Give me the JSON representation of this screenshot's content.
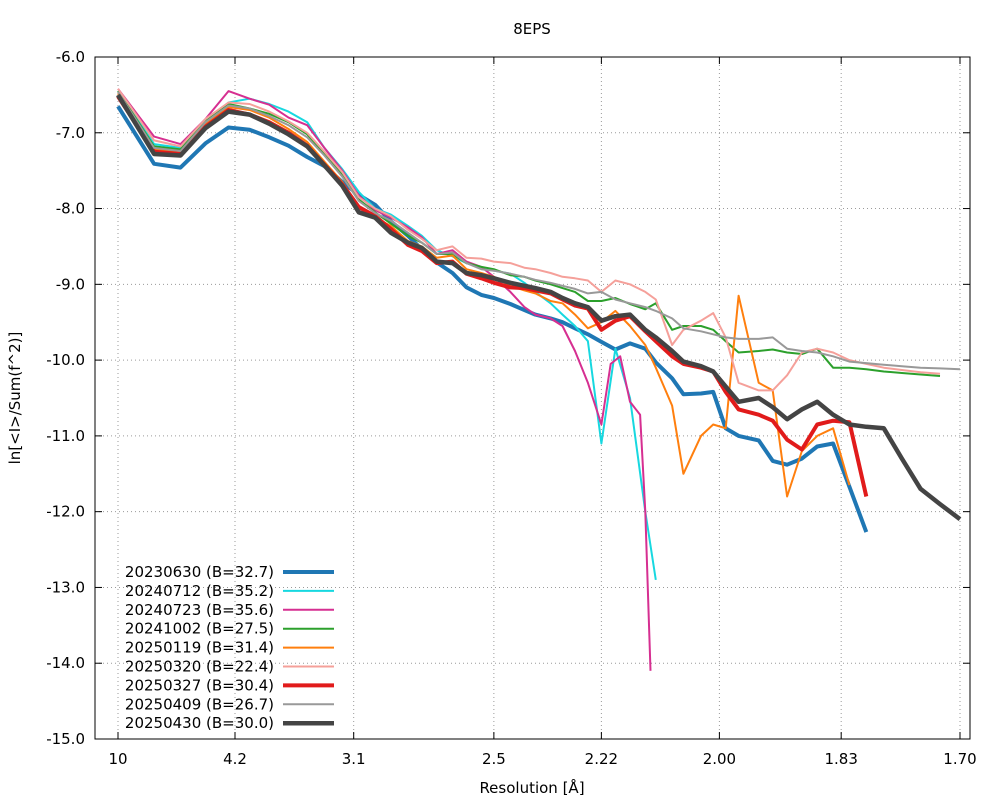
{
  "chart_data": {
    "type": "line",
    "title": "8EPS",
    "xlabel": "Resolution [Å]",
    "ylabel": "ln[<I>/Sum(f^2)]",
    "x_axis_scale": "inverse-square resolution (1/d^2)",
    "xlim_resolution": [
      10,
      1.7
    ],
    "ylim": [
      -15.0,
      -6.0
    ],
    "x_ticks": [
      "10",
      "4.2",
      "3.1",
      "2.5",
      "2.22",
      "2.00",
      "1.83",
      "1.70"
    ],
    "y_ticks": [
      "-6.0",
      "-7.0",
      "-8.0",
      "-9.0",
      "-10.0",
      "-11.0",
      "-12.0",
      "-13.0",
      "-14.0",
      "-15.0"
    ],
    "grid": true,
    "legend_position": "bottom-left",
    "series": [
      {
        "name": "20230630 (B=32.7)",
        "color": "#1f77b4",
        "width": 4,
        "x": [
          10.0,
          6.4,
          5.35,
          4.72,
          4.3,
          4.0,
          3.77,
          3.58,
          3.42,
          3.29,
          3.17,
          3.07,
          2.98,
          2.9,
          2.82,
          2.76,
          2.7,
          2.64,
          2.59,
          2.54,
          2.5,
          2.45,
          2.41,
          2.38,
          2.34,
          2.31,
          2.28,
          2.25,
          2.22,
          2.19,
          2.16,
          2.13,
          2.11,
          2.08,
          2.06,
          2.03,
          2.01,
          1.99,
          1.97,
          1.94,
          1.92,
          1.9,
          1.88,
          1.86,
          1.84,
          1.82,
          1.8
        ],
        "y": [
          -6.65,
          -7.41,
          -7.46,
          -7.14,
          -6.93,
          -6.96,
          -7.06,
          -7.17,
          -7.32,
          -7.44,
          -7.65,
          -7.82,
          -7.95,
          -8.17,
          -8.36,
          -8.54,
          -8.71,
          -8.85,
          -9.04,
          -9.14,
          -9.18,
          -9.26,
          -9.34,
          -9.4,
          -9.45,
          -9.5,
          -9.58,
          -9.66,
          -9.76,
          -9.86,
          -9.78,
          -9.85,
          -10.03,
          -10.24,
          -10.45,
          -10.44,
          -10.42,
          -10.9,
          -11.0,
          -11.06,
          -11.33,
          -11.38,
          -11.3,
          -11.14,
          -11.1,
          -11.67,
          -12.27
        ]
      },
      {
        "name": "20240712 (B=35.2)",
        "color": "#17d8e0",
        "width": 2,
        "x": [
          10.0,
          6.4,
          5.35,
          4.72,
          4.3,
          4.0,
          3.77,
          3.58,
          3.42,
          3.29,
          3.17,
          3.07,
          2.98,
          2.9,
          2.82,
          2.76,
          2.7,
          2.64,
          2.59,
          2.54,
          2.5,
          2.45,
          2.41,
          2.38,
          2.34,
          2.31,
          2.28,
          2.25,
          2.22,
          2.19,
          2.16,
          2.13,
          2.11
        ],
        "y": [
          -6.45,
          -7.15,
          -7.2,
          -6.85,
          -6.6,
          -6.55,
          -6.62,
          -6.72,
          -6.86,
          -7.2,
          -7.48,
          -7.78,
          -8.0,
          -8.08,
          -8.23,
          -8.36,
          -8.55,
          -8.63,
          -8.72,
          -8.77,
          -8.82,
          -8.86,
          -8.98,
          -9.1,
          -9.25,
          -9.4,
          -9.55,
          -9.75,
          -11.1,
          -9.85,
          -10.5,
          -12.0,
          -12.9
        ]
      },
      {
        "name": "20240723 (B=35.6)",
        "color": "#d62f91",
        "width": 2,
        "x": [
          10.0,
          6.4,
          5.35,
          4.72,
          4.3,
          4.0,
          3.77,
          3.58,
          3.42,
          3.29,
          3.17,
          3.07,
          2.98,
          2.9,
          2.82,
          2.76,
          2.7,
          2.64,
          2.59,
          2.54,
          2.5,
          2.45,
          2.41,
          2.38,
          2.34,
          2.31,
          2.28,
          2.25,
          2.22,
          2.2,
          2.18,
          2.16,
          2.14,
          2.13,
          2.12
        ],
        "y": [
          -6.42,
          -7.05,
          -7.15,
          -6.82,
          -6.45,
          -6.55,
          -6.63,
          -6.8,
          -6.9,
          -7.2,
          -7.5,
          -7.83,
          -8.02,
          -8.12,
          -8.25,
          -8.38,
          -8.6,
          -8.55,
          -8.7,
          -8.77,
          -8.9,
          -9.1,
          -9.3,
          -9.4,
          -9.45,
          -9.55,
          -9.88,
          -10.3,
          -10.85,
          -10.05,
          -9.95,
          -10.55,
          -10.72,
          -12.0,
          -14.1
        ]
      },
      {
        "name": "20241002 (B=27.5)",
        "color": "#2ca02c",
        "width": 2,
        "x": [
          10.0,
          6.4,
          5.35,
          4.72,
          4.3,
          4.0,
          3.77,
          3.58,
          3.42,
          3.29,
          3.17,
          3.07,
          2.98,
          2.9,
          2.82,
          2.76,
          2.7,
          2.64,
          2.59,
          2.54,
          2.5,
          2.45,
          2.41,
          2.38,
          2.34,
          2.31,
          2.28,
          2.25,
          2.22,
          2.19,
          2.16,
          2.13,
          2.11,
          2.08,
          2.06,
          2.03,
          2.01,
          1.99,
          1.97,
          1.94,
          1.92,
          1.9,
          1.88,
          1.86,
          1.84,
          1.82,
          1.8,
          1.78,
          1.76,
          1.74,
          1.72
        ],
        "y": [
          -6.45,
          -7.18,
          -7.22,
          -6.85,
          -6.62,
          -6.68,
          -6.75,
          -6.86,
          -7.02,
          -7.28,
          -7.55,
          -7.88,
          -8.05,
          -8.2,
          -8.36,
          -8.45,
          -8.6,
          -8.6,
          -8.72,
          -8.77,
          -8.8,
          -8.88,
          -8.9,
          -8.95,
          -9.0,
          -9.05,
          -9.1,
          -9.22,
          -9.22,
          -9.18,
          -9.26,
          -9.33,
          -9.25,
          -9.6,
          -9.55,
          -9.55,
          -9.6,
          -9.75,
          -9.9,
          -9.88,
          -9.86,
          -9.9,
          -9.92,
          -9.85,
          -10.1,
          -10.1,
          -10.12,
          -10.15,
          -10.17,
          -10.19,
          -10.21
        ]
      },
      {
        "name": "20250119 (B=31.4)",
        "color": "#ff7f0e",
        "width": 2,
        "x": [
          10.0,
          6.4,
          5.35,
          4.72,
          4.3,
          4.0,
          3.77,
          3.58,
          3.42,
          3.29,
          3.17,
          3.07,
          2.98,
          2.9,
          2.82,
          2.76,
          2.7,
          2.64,
          2.59,
          2.54,
          2.5,
          2.45,
          2.41,
          2.38,
          2.34,
          2.31,
          2.28,
          2.25,
          2.22,
          2.19,
          2.16,
          2.13,
          2.11,
          2.08,
          2.06,
          2.03,
          2.01,
          1.99,
          1.97,
          1.94,
          1.92,
          1.9,
          1.88,
          1.86,
          1.84,
          1.82
        ],
        "y": [
          -6.48,
          -7.22,
          -7.25,
          -6.88,
          -6.66,
          -6.7,
          -6.8,
          -6.95,
          -7.12,
          -7.38,
          -7.65,
          -7.98,
          -8.12,
          -8.23,
          -8.43,
          -8.5,
          -8.65,
          -8.62,
          -8.8,
          -8.85,
          -8.9,
          -9.02,
          -9.08,
          -9.12,
          -9.22,
          -9.25,
          -9.4,
          -9.58,
          -9.5,
          -9.35,
          -9.55,
          -9.8,
          -10.1,
          -10.6,
          -11.5,
          -11.0,
          -10.85,
          -10.9,
          -9.15,
          -10.3,
          -10.4,
          -11.8,
          -11.2,
          -11.0,
          -10.9,
          -11.65
        ]
      },
      {
        "name": "20250320 (B=22.4)",
        "color": "#f5a09a",
        "width": 2,
        "x": [
          10.0,
          6.4,
          5.35,
          4.72,
          4.3,
          4.0,
          3.77,
          3.58,
          3.42,
          3.29,
          3.17,
          3.07,
          2.98,
          2.9,
          2.82,
          2.76,
          2.7,
          2.64,
          2.59,
          2.54,
          2.5,
          2.45,
          2.41,
          2.38,
          2.34,
          2.31,
          2.28,
          2.25,
          2.22,
          2.19,
          2.16,
          2.13,
          2.11,
          2.08,
          2.06,
          2.03,
          2.01,
          1.99,
          1.97,
          1.94,
          1.92,
          1.9,
          1.88,
          1.86,
          1.84,
          1.82,
          1.8,
          1.78,
          1.76,
          1.74,
          1.72
        ],
        "y": [
          -6.42,
          -7.1,
          -7.18,
          -6.82,
          -6.6,
          -6.62,
          -6.72,
          -6.85,
          -7.0,
          -7.25,
          -7.52,
          -7.85,
          -8.0,
          -8.1,
          -8.28,
          -8.4,
          -8.55,
          -8.5,
          -8.65,
          -8.66,
          -8.7,
          -8.72,
          -8.78,
          -8.8,
          -8.85,
          -8.9,
          -8.92,
          -8.95,
          -9.1,
          -8.95,
          -9.0,
          -9.1,
          -9.2,
          -9.8,
          -9.6,
          -9.48,
          -9.38,
          -9.7,
          -10.3,
          -10.4,
          -10.4,
          -10.2,
          -9.9,
          -9.85,
          -9.9,
          -10.0,
          -10.05,
          -10.1,
          -10.13,
          -10.16,
          -10.18
        ]
      },
      {
        "name": "20250327 (B=30.4)",
        "color": "#e11b1b",
        "width": 4,
        "x": [
          10.0,
          6.4,
          5.35,
          4.72,
          4.3,
          4.0,
          3.77,
          3.58,
          3.42,
          3.29,
          3.17,
          3.07,
          2.98,
          2.9,
          2.82,
          2.76,
          2.7,
          2.64,
          2.59,
          2.54,
          2.5,
          2.45,
          2.41,
          2.38,
          2.34,
          2.31,
          2.28,
          2.25,
          2.22,
          2.19,
          2.16,
          2.13,
          2.11,
          2.08,
          2.06,
          2.03,
          2.01,
          1.99,
          1.97,
          1.94,
          1.92,
          1.9,
          1.88,
          1.86,
          1.84,
          1.82,
          1.8
        ],
        "y": [
          -6.52,
          -7.25,
          -7.28,
          -6.92,
          -6.7,
          -6.76,
          -6.86,
          -7.0,
          -7.17,
          -7.42,
          -7.68,
          -7.98,
          -8.1,
          -8.27,
          -8.48,
          -8.56,
          -8.72,
          -8.7,
          -8.86,
          -8.92,
          -8.98,
          -9.04,
          -9.05,
          -9.08,
          -9.12,
          -9.2,
          -9.28,
          -9.32,
          -9.6,
          -9.48,
          -9.42,
          -9.62,
          -9.75,
          -9.95,
          -10.05,
          -10.1,
          -10.15,
          -10.42,
          -10.65,
          -10.72,
          -10.8,
          -11.05,
          -11.18,
          -10.85,
          -10.8,
          -10.82,
          -11.8
        ]
      },
      {
        "name": "20250409 (B=26.7)",
        "color": "#999999",
        "width": 2,
        "x": [
          10.0,
          6.4,
          5.35,
          4.72,
          4.3,
          4.0,
          3.77,
          3.58,
          3.42,
          3.29,
          3.17,
          3.07,
          2.98,
          2.9,
          2.82,
          2.76,
          2.7,
          2.64,
          2.59,
          2.54,
          2.5,
          2.45,
          2.41,
          2.38,
          2.34,
          2.31,
          2.28,
          2.25,
          2.22,
          2.19,
          2.16,
          2.13,
          2.11,
          2.08,
          2.06,
          2.03,
          2.01,
          1.99,
          1.97,
          1.94,
          1.92,
          1.9,
          1.88,
          1.86,
          1.84,
          1.82,
          1.8,
          1.78,
          1.76,
          1.74,
          1.72,
          1.7
        ],
        "y": [
          -6.46,
          -7.2,
          -7.24,
          -6.86,
          -6.64,
          -6.68,
          -6.78,
          -6.9,
          -7.06,
          -7.3,
          -7.58,
          -7.9,
          -8.06,
          -8.16,
          -8.32,
          -8.45,
          -8.6,
          -8.58,
          -8.72,
          -8.8,
          -8.82,
          -8.86,
          -8.9,
          -8.94,
          -8.98,
          -9.02,
          -9.06,
          -9.12,
          -9.1,
          -9.2,
          -9.25,
          -9.3,
          -9.35,
          -9.45,
          -9.58,
          -9.62,
          -9.66,
          -9.7,
          -9.72,
          -9.72,
          -9.7,
          -9.85,
          -9.88,
          -9.9,
          -9.95,
          -10.02,
          -10.04,
          -10.06,
          -10.08,
          -10.1,
          -10.11,
          -10.12
        ]
      },
      {
        "name": "20250430 (B=30.0)",
        "color": "#444444",
        "width": 4.5,
        "x": [
          10.0,
          6.4,
          5.35,
          4.72,
          4.3,
          4.0,
          3.77,
          3.58,
          3.42,
          3.29,
          3.17,
          3.07,
          2.98,
          2.9,
          2.82,
          2.76,
          2.7,
          2.64,
          2.59,
          2.54,
          2.5,
          2.45,
          2.41,
          2.38,
          2.34,
          2.31,
          2.28,
          2.25,
          2.22,
          2.19,
          2.16,
          2.13,
          2.11,
          2.08,
          2.06,
          2.03,
          2.01,
          1.99,
          1.97,
          1.94,
          1.92,
          1.9,
          1.88,
          1.86,
          1.84,
          1.82,
          1.8,
          1.78,
          1.76,
          1.74,
          1.72,
          1.7
        ],
        "y": [
          -6.5,
          -7.28,
          -7.3,
          -6.94,
          -6.72,
          -6.76,
          -6.88,
          -7.02,
          -7.18,
          -7.43,
          -7.7,
          -8.05,
          -8.12,
          -8.32,
          -8.45,
          -8.52,
          -8.7,
          -8.72,
          -8.85,
          -8.88,
          -8.92,
          -8.98,
          -9.02,
          -9.05,
          -9.1,
          -9.18,
          -9.25,
          -9.3,
          -9.48,
          -9.42,
          -9.4,
          -9.6,
          -9.7,
          -9.88,
          -10.02,
          -10.08,
          -10.15,
          -10.35,
          -10.55,
          -10.5,
          -10.62,
          -10.78,
          -10.65,
          -10.55,
          -10.72,
          -10.85,
          -10.88,
          -10.9,
          -11.3,
          -11.7,
          -11.9,
          -12.1
        ]
      }
    ]
  }
}
